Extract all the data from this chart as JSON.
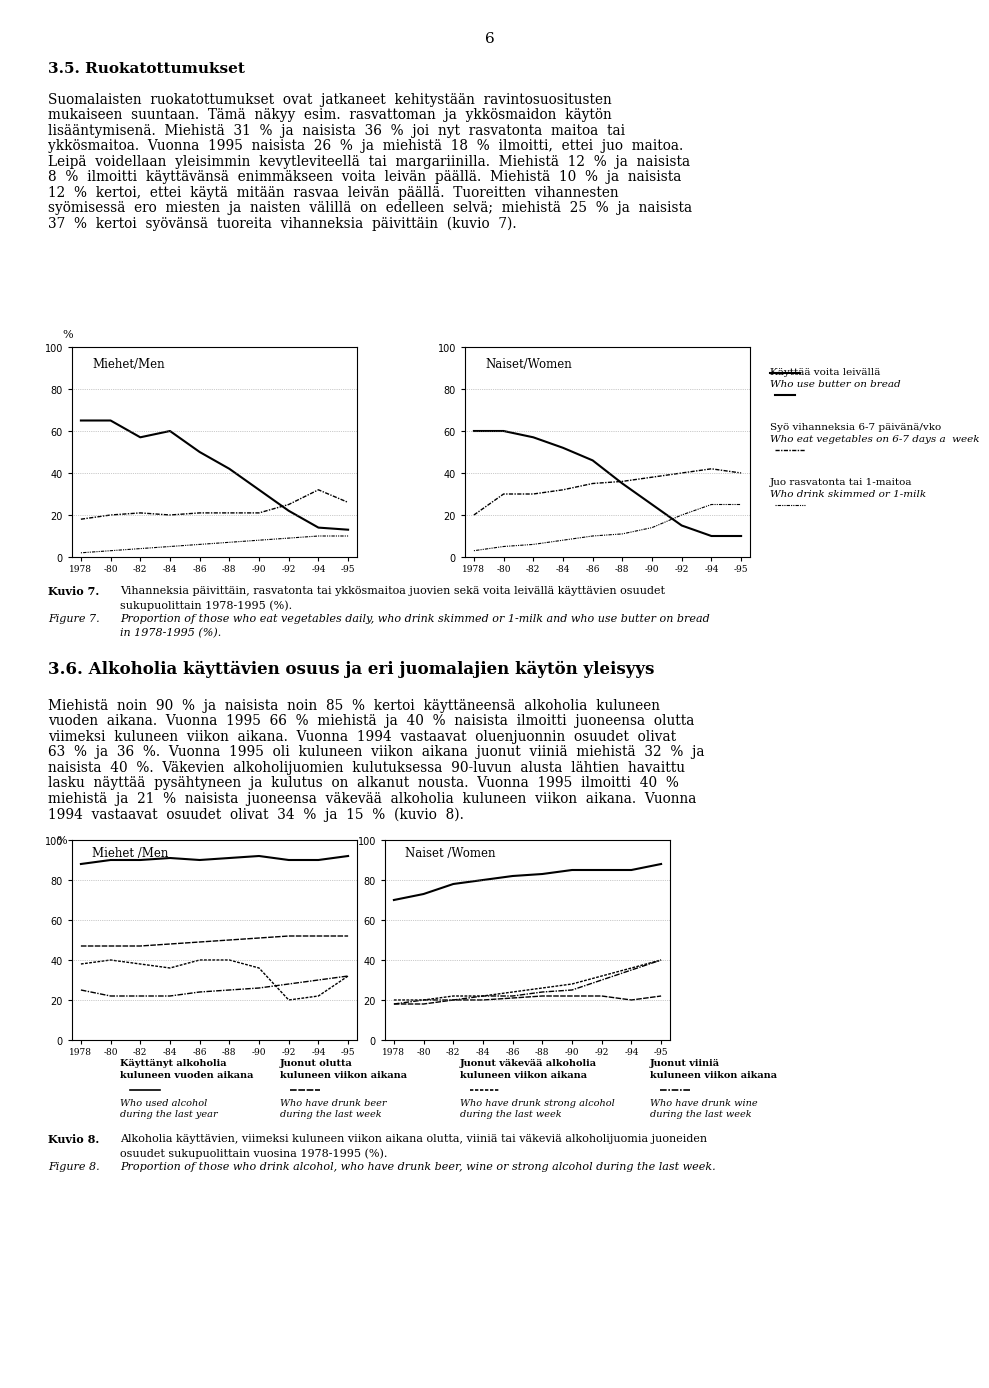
{
  "page_number": "6",
  "bg_color": "#ffffff",
  "section_35_title": "3.5. Ruokatottumukset",
  "fig7_year_labels": [
    "1978",
    "-80",
    "-82",
    "-84",
    "-86",
    "-88",
    "-90",
    "-92",
    "-94",
    "-95"
  ],
  "fig7_men_solid": [
    65,
    65,
    57,
    60,
    50,
    42,
    32,
    22,
    14,
    13
  ],
  "fig7_men_dashdot": [
    18,
    20,
    21,
    20,
    21,
    21,
    21,
    25,
    32,
    26
  ],
  "fig7_men_dotted": [
    2,
    3,
    4,
    5,
    6,
    7,
    8,
    9,
    10,
    10
  ],
  "fig7_women_solid": [
    60,
    60,
    57,
    52,
    46,
    35,
    25,
    15,
    10,
    10
  ],
  "fig7_women_dashdot": [
    20,
    30,
    30,
    32,
    35,
    36,
    38,
    40,
    42,
    40
  ],
  "fig7_women_dotted": [
    3,
    5,
    6,
    8,
    10,
    11,
    14,
    20,
    25,
    25
  ],
  "fig7_men_label": "Miehet/Men",
  "fig7_women_label": "Naiset/Women",
  "fig7_legend1_fi": "Käyttää voita leivällä",
  "fig7_legend1_en": "Who use butter on bread",
  "fig7_legend2_fi": "Syö vihanneksia 6-7 päivänä/vko",
  "fig7_legend2_en": "Who eat vegetables on 6-7 days a  week",
  "fig7_legend3_fi": "Juo rasvatonta tai 1-maitoa",
  "fig7_legend3_en": "Who drink skimmed or 1-milk",
  "section_36_title": "3.6. Alkoholia käyttävien osuus ja eri juomalajien käytön yleisyys",
  "fig8_year_labels": [
    "1978",
    "-80",
    "-82",
    "-84",
    "-86",
    "-88",
    "-90",
    "-92",
    "-94",
    "-95"
  ],
  "fig8_men_solid": [
    88,
    90,
    90,
    91,
    90,
    91,
    92,
    90,
    90,
    92
  ],
  "fig8_men_dash1": [
    47,
    47,
    47,
    48,
    49,
    50,
    51,
    52,
    52,
    52
  ],
  "fig8_men_dash2": [
    38,
    40,
    38,
    36,
    40,
    40,
    36,
    20,
    22,
    32
  ],
  "fig8_men_dash3": [
    25,
    22,
    22,
    22,
    24,
    25,
    26,
    28,
    30,
    32
  ],
  "fig8_women_solid": [
    70,
    73,
    78,
    80,
    82,
    83,
    85,
    85,
    85,
    88
  ],
  "fig8_women_dash1": [
    18,
    18,
    20,
    20,
    21,
    22,
    22,
    22,
    20,
    22
  ],
  "fig8_women_dash2": [
    20,
    20,
    22,
    22,
    24,
    26,
    28,
    32,
    36,
    40
  ],
  "fig8_women_dash3": [
    18,
    20,
    20,
    22,
    22,
    24,
    25,
    30,
    35,
    40
  ],
  "fig8_men_label": "Miehet /Men",
  "fig8_women_label": "Naiset /Women",
  "fig8_leg1_fi": "Käyttänyt alkoholia\nkuluneen vuoden aikana",
  "fig8_leg1_en": "Who used alcohol\nduring the last year",
  "fig8_leg2_fi": "Juonut olutta\nkuluneen viikon aikana",
  "fig8_leg2_en": "Who have drunk beer\nduring the last week",
  "fig8_leg3_fi": "Juonut väkevää alkoholia\nkuluneen viikon aikana",
  "fig8_leg3_en": "Who have drunk strong alcohol\nduring the last week",
  "fig8_leg4_fi": "Juonut viiniä\nkuluneen viikon aikana",
  "fig8_leg4_en": "Who have drunk wine\nduring the last week"
}
